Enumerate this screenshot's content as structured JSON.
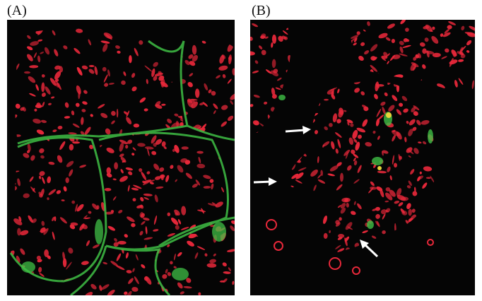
{
  "figure": {
    "panels": [
      {
        "label": "(A)",
        "content": "microscopy"
      },
      {
        "label": "(B)",
        "content": "microscopy"
      }
    ],
    "colors": {
      "background": "#050505",
      "stain_red": "#e8283a",
      "stain_green": "#3fbf45",
      "arrow": "#ffffff"
    }
  }
}
